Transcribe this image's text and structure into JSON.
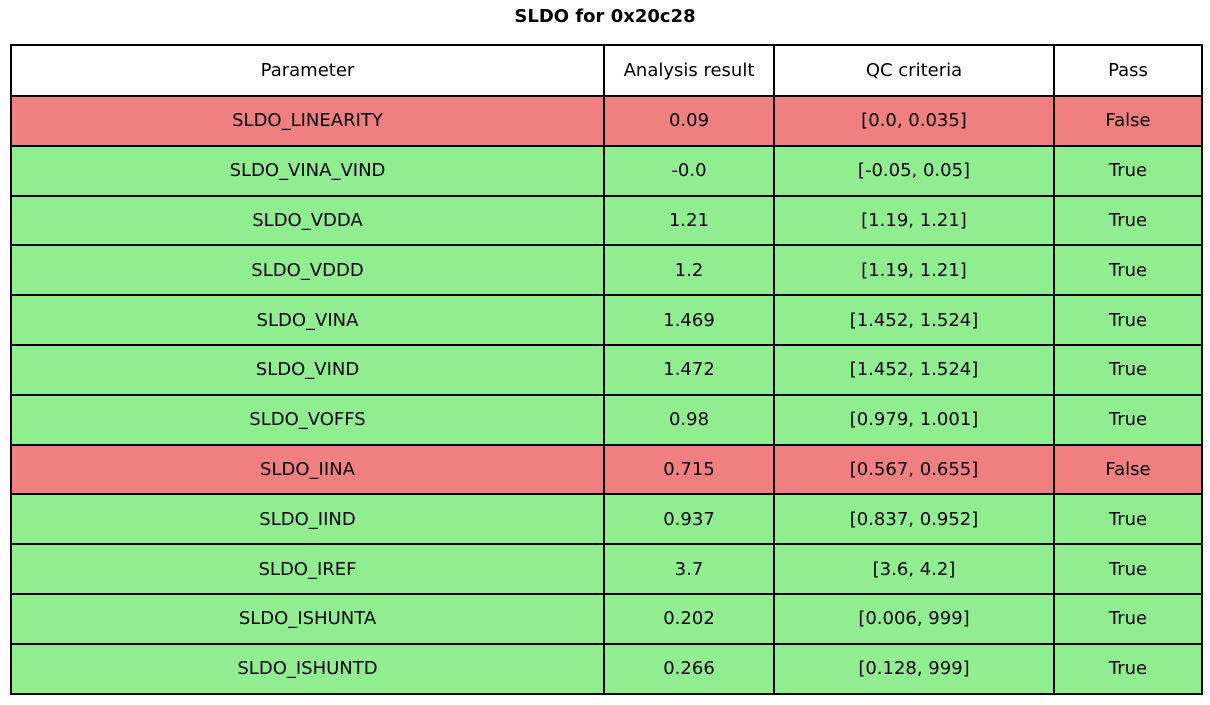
{
  "title": "SLDO for 0x20c28",
  "colors": {
    "pass_green": "#90ee90",
    "fail_red": "#f08080",
    "header_bg": "#ffffff",
    "border": "#000000"
  },
  "table": {
    "headers": [
      "Parameter",
      "Analysis result",
      "QC criteria",
      "Pass"
    ],
    "rows": [
      {
        "parameter": "SLDO_LINEARITY",
        "result": "0.09",
        "criteria": "[0.0, 0.035]",
        "pass": "False",
        "status": "fail"
      },
      {
        "parameter": "SLDO_VINA_VIND",
        "result": "-0.0",
        "criteria": "[-0.05, 0.05]",
        "pass": "True",
        "status": "pass"
      },
      {
        "parameter": "SLDO_VDDA",
        "result": "1.21",
        "criteria": "[1.19, 1.21]",
        "pass": "True",
        "status": "pass"
      },
      {
        "parameter": "SLDO_VDDD",
        "result": "1.2",
        "criteria": "[1.19, 1.21]",
        "pass": "True",
        "status": "pass"
      },
      {
        "parameter": "SLDO_VINA",
        "result": "1.469",
        "criteria": "[1.452, 1.524]",
        "pass": "True",
        "status": "pass"
      },
      {
        "parameter": "SLDO_VIND",
        "result": "1.472",
        "criteria": "[1.452, 1.524]",
        "pass": "True",
        "status": "pass"
      },
      {
        "parameter": "SLDO_VOFFS",
        "result": "0.98",
        "criteria": "[0.979, 1.001]",
        "pass": "True",
        "status": "pass"
      },
      {
        "parameter": "SLDO_IINA",
        "result": "0.715",
        "criteria": "[0.567, 0.655]",
        "pass": "False",
        "status": "fail"
      },
      {
        "parameter": "SLDO_IIND",
        "result": "0.937",
        "criteria": "[0.837, 0.952]",
        "pass": "True",
        "status": "pass"
      },
      {
        "parameter": "SLDO_IREF",
        "result": "3.7",
        "criteria": "[3.6, 4.2]",
        "pass": "True",
        "status": "pass"
      },
      {
        "parameter": "SLDO_ISHUNTA",
        "result": "0.202",
        "criteria": "[0.006, 999]",
        "pass": "True",
        "status": "pass"
      },
      {
        "parameter": "SLDO_ISHUNTD",
        "result": "0.266",
        "criteria": "[0.128, 999]",
        "pass": "True",
        "status": "pass"
      }
    ]
  },
  "chart_data": {
    "type": "table",
    "title": "SLDO for 0x20c28",
    "columns": [
      "Parameter",
      "Analysis result",
      "QC criteria",
      "Pass"
    ],
    "rows": [
      {
        "parameter": "SLDO_LINEARITY",
        "analysis_result": 0.09,
        "qc_criteria": [
          0.0,
          0.035
        ],
        "pass": false
      },
      {
        "parameter": "SLDO_VINA_VIND",
        "analysis_result": -0.0,
        "qc_criteria": [
          -0.05,
          0.05
        ],
        "pass": true
      },
      {
        "parameter": "SLDO_VDDA",
        "analysis_result": 1.21,
        "qc_criteria": [
          1.19,
          1.21
        ],
        "pass": true
      },
      {
        "parameter": "SLDO_VDDD",
        "analysis_result": 1.2,
        "qc_criteria": [
          1.19,
          1.21
        ],
        "pass": true
      },
      {
        "parameter": "SLDO_VINA",
        "analysis_result": 1.469,
        "qc_criteria": [
          1.452,
          1.524
        ],
        "pass": true
      },
      {
        "parameter": "SLDO_VIND",
        "analysis_result": 1.472,
        "qc_criteria": [
          1.452,
          1.524
        ],
        "pass": true
      },
      {
        "parameter": "SLDO_VOFFS",
        "analysis_result": 0.98,
        "qc_criteria": [
          0.979,
          1.001
        ],
        "pass": true
      },
      {
        "parameter": "SLDO_IINA",
        "analysis_result": 0.715,
        "qc_criteria": [
          0.567,
          0.655
        ],
        "pass": false
      },
      {
        "parameter": "SLDO_IIND",
        "analysis_result": 0.937,
        "qc_criteria": [
          0.837,
          0.952
        ],
        "pass": true
      },
      {
        "parameter": "SLDO_IREF",
        "analysis_result": 3.7,
        "qc_criteria": [
          3.6,
          4.2
        ],
        "pass": true
      },
      {
        "parameter": "SLDO_ISHUNTA",
        "analysis_result": 0.202,
        "qc_criteria": [
          0.006,
          999
        ],
        "pass": true
      },
      {
        "parameter": "SLDO_ISHUNTD",
        "analysis_result": 0.266,
        "qc_criteria": [
          0.128,
          999
        ],
        "pass": true
      }
    ],
    "row_color_key": {
      "pass": "#90ee90",
      "fail": "#f08080"
    },
    "layout": {
      "title_position": "top-center",
      "cell_text_align": "center",
      "grid": true
    }
  }
}
